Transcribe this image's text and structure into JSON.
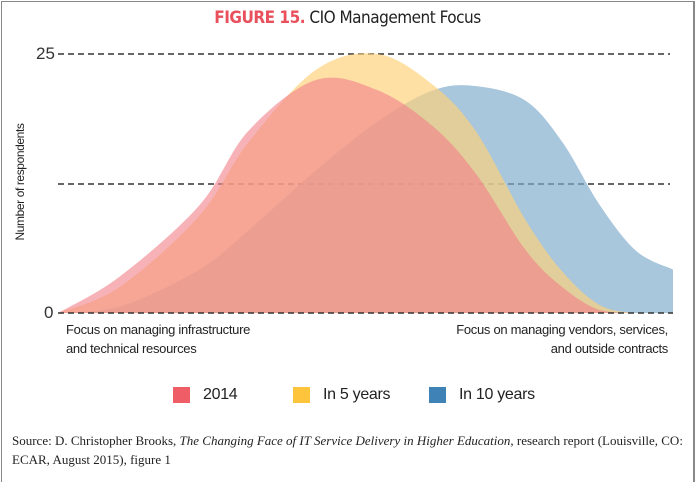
{
  "title": {
    "figure": "FIGURE 15.",
    "text": "CIO Management Focus"
  },
  "colors": {
    "title_accent": "#e8505b",
    "s2014": "#ef5d66",
    "s5": "#fdc43c",
    "s10": "#3f82b5"
  },
  "chart_data": {
    "type": "area",
    "title": "FIGURE 15. CIO Management Focus",
    "xlabel": "",
    "ylabel": "Number of respondents",
    "ylim": [
      0,
      25
    ],
    "yticks": [
      0,
      25
    ],
    "grid": "dashed lines at 0, 12.5, 25",
    "x_axis_endpoints": {
      "left": "Focus on managing infrastructure and technical resources",
      "right": "Focus on managing vendors, services, and outside contracts"
    },
    "x": [
      0.0,
      0.1,
      0.23,
      0.31,
      0.42,
      0.52,
      0.61,
      0.68,
      0.76,
      0.82,
      0.88,
      0.94,
      1.0
    ],
    "series": [
      {
        "name": "2014",
        "color": "#ef5d66",
        "values": [
          0,
          3.5,
          10.4,
          17.6,
          22.5,
          21.5,
          18.0,
          13.4,
          6.1,
          2.5,
          0.3,
          0,
          0
        ]
      },
      {
        "name": "In 5 years",
        "color": "#fdc43c",
        "values": [
          0,
          2.5,
          9.4,
          16.5,
          23.5,
          25.0,
          22.0,
          17.5,
          9.0,
          4.0,
          0.8,
          0,
          0
        ]
      },
      {
        "name": "In 10 years",
        "color": "#3f82b5",
        "values": [
          0,
          0.6,
          4.2,
          8.0,
          13.8,
          18.5,
          21.5,
          21.9,
          20.5,
          16.5,
          10.5,
          6.0,
          4.2
        ]
      }
    ],
    "legend_position": "bottom"
  },
  "axis": {
    "ylabel": "Number of respondents",
    "tick_top": "25",
    "tick_bottom": "0"
  },
  "xnotes": {
    "left_line1": "Focus on managing infrastructure",
    "left_line2": "and technical resources",
    "right_line1": "Focus on managing vendors, services,",
    "right_line2": "and outside contracts"
  },
  "legend": [
    {
      "label": "2014",
      "color": "#ef5d66"
    },
    {
      "label": "In 5 years",
      "color": "#fdc43c"
    },
    {
      "label": "In 10 years",
      "color": "#3f82b5"
    }
  ],
  "source": {
    "prefix": "Source: D. Christopher Brooks, ",
    "title": "The Changing Face of IT Service Delivery in Higher Education",
    "suffix": ", research report (Louisville, CO: ECAR, August 2015), figure 1"
  }
}
